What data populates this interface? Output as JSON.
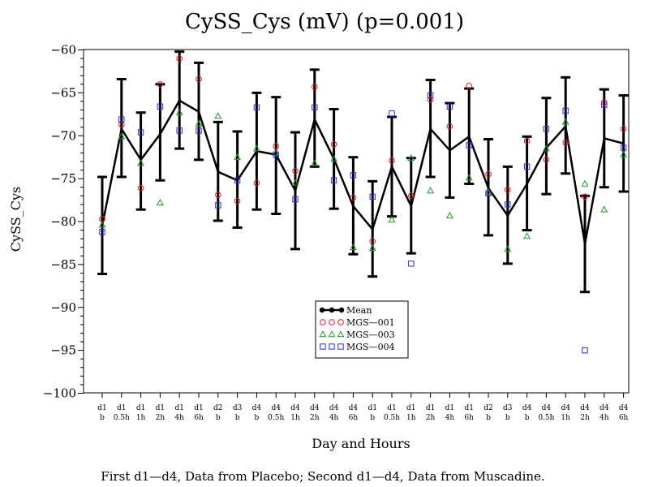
{
  "chart_data": {
    "type": "line",
    "title": "CySS_Cys  (mV)  (p=0.001)",
    "xlabel": "Day  and  Hours",
    "ylabel": "CySS_Cys",
    "footnote": "First  d1—d4,  Data  from  Placebo;  Second  d1—d4,  Data  from  Muscadine.",
    "ylim": [
      -100,
      -60
    ],
    "yticks": [
      -60,
      -65,
      -70,
      -75,
      -80,
      -85,
      -90,
      -95,
      -100
    ],
    "ytick_labels": [
      "−60",
      "−65",
      "−70",
      "−75",
      "−80",
      "−85",
      "−90",
      "−95",
      "−100"
    ],
    "categories": [
      [
        "d1",
        "b"
      ],
      [
        "d1",
        "0.5h"
      ],
      [
        "d1",
        "1h"
      ],
      [
        "d1",
        "2h"
      ],
      [
        "d1",
        "4h"
      ],
      [
        "d1",
        "6h"
      ],
      [
        "d2",
        "b"
      ],
      [
        "d3",
        "b"
      ],
      [
        "d4",
        "b"
      ],
      [
        "d4",
        "0.5h"
      ],
      [
        "d4",
        "1h"
      ],
      [
        "d4",
        "2h"
      ],
      [
        "d4",
        "4h"
      ],
      [
        "d4",
        "6h"
      ],
      [
        "d1",
        "b"
      ],
      [
        "d1",
        "0.5h"
      ],
      [
        "d1",
        "1h"
      ],
      [
        "d1",
        "2h"
      ],
      [
        "d1",
        "4h"
      ],
      [
        "d1",
        "6h"
      ],
      [
        "d2",
        "b"
      ],
      [
        "d3",
        "b"
      ],
      [
        "d4",
        "b"
      ],
      [
        "d4",
        "0.5h"
      ],
      [
        "d4",
        "1h"
      ],
      [
        "d4",
        "2h"
      ],
      [
        "d4",
        "4h"
      ],
      [
        "d4",
        "6h"
      ]
    ],
    "mean": [
      -80.5,
      -69.2,
      -72.8,
      -69.8,
      -65.9,
      -67.2,
      -74.2,
      -75.2,
      -71.8,
      -72.2,
      -76.4,
      -68.1,
      -72.7,
      -78.2,
      -80.9,
      -73.6,
      -78.2,
      -69.2,
      -71.7,
      -70.1,
      -76.1,
      -79.3,
      -75.6,
      -71.4,
      -68.9,
      -82.6,
      -70.3,
      -70.9
    ],
    "error_low": [
      -86.1,
      -74.8,
      -78.6,
      -75.2,
      -71.5,
      -72.8,
      -79.9,
      -80.7,
      -78.6,
      -79.1,
      -83.2,
      -73.6,
      -78.5,
      -83.8,
      -86.4,
      -79.4,
      -83.7,
      -74.8,
      -77.2,
      -75.6,
      -81.6,
      -84.9,
      -81.0,
      -76.8,
      -74.4,
      -88.2,
      -76.0,
      -76.5
    ],
    "error_high": [
      -74.8,
      -63.4,
      -67.3,
      -64.0,
      -60.2,
      -61.5,
      -68.4,
      -69.5,
      -65.0,
      -65.5,
      -69.6,
      -62.3,
      -66.9,
      -72.5,
      -75.3,
      -67.8,
      -72.6,
      -63.5,
      -66.2,
      -64.5,
      -70.4,
      -73.6,
      -70.1,
      -65.6,
      -63.2,
      -77.0,
      -64.6,
      -65.3
    ],
    "series": [
      {
        "name": "MGS—001",
        "marker": "circle",
        "color": "#e8191c",
        "values": [
          -79.7,
          -68.7,
          -76.1,
          -64.0,
          -61.0,
          -63.4,
          -76.9,
          -77.6,
          -75.5,
          -71.2,
          -74.1,
          -64.3,
          -71.0,
          -77.2,
          -82.3,
          -72.9,
          -77.0,
          -65.8,
          -68.9,
          -64.2,
          -74.5,
          -76.3,
          -70.6,
          -72.8,
          -70.8,
          -77.1,
          -66.1,
          -69.2
        ]
      },
      {
        "name": "MGS—003",
        "marker": "triangle",
        "color": "#1f9a2f",
        "values": [
          -80.4,
          -70.1,
          -73.2,
          -77.8,
          -67.3,
          -68.6,
          -67.7,
          -72.5,
          -71.5,
          -72.0,
          -75.5,
          -73.2,
          -72.7,
          -83.0,
          -83.1,
          -79.8,
          -72.6,
          -76.4,
          -79.3,
          -74.9,
          -76.6,
          -83.2,
          -81.7,
          -71.5,
          -68.4,
          -75.6,
          -78.6,
          -72.2
        ]
      },
      {
        "name": "MGS—004",
        "marker": "square",
        "color": "#2a2adc",
        "values": [
          -81.2,
          -68.1,
          -69.6,
          -66.6,
          -69.4,
          -69.4,
          -78.1,
          -75.2,
          -66.7,
          -72.2,
          -77.4,
          -66.7,
          -75.2,
          -74.6,
          -77.1,
          -67.4,
          -84.9,
          -65.3,
          -66.6,
          -71.1,
          -76.7,
          -78.0,
          -73.6,
          -69.2,
          -67.1,
          -95.0,
          -66.4,
          -71.4
        ]
      }
    ],
    "legend": {
      "placement": "bottom-center",
      "mean_label": "Mean"
    },
    "grid": false
  }
}
